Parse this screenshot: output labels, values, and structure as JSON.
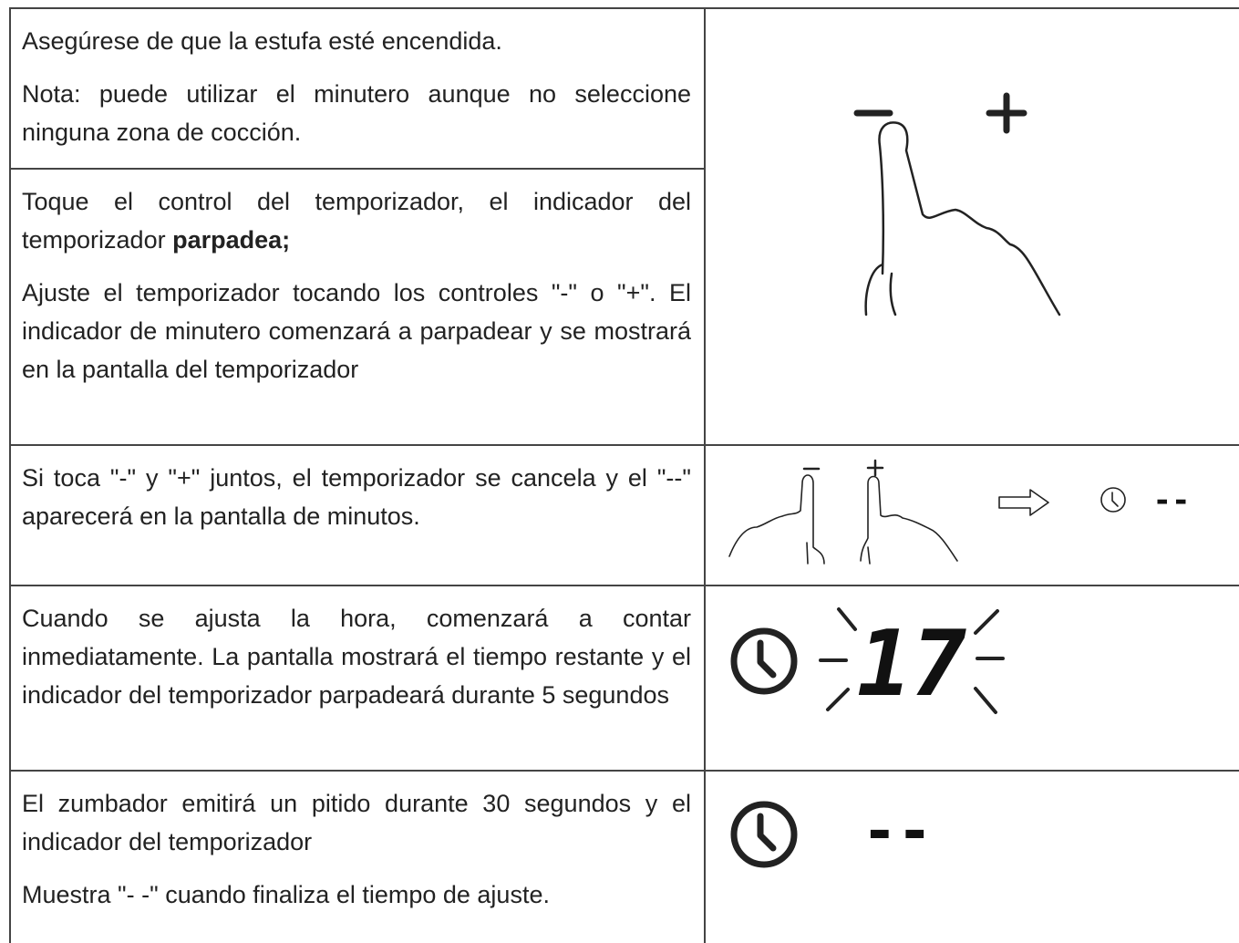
{
  "table": {
    "rows": [
      {
        "paragraphs": [
          [
            {
              "text": "Asegúrese de que la estufa esté encendida."
            }
          ],
          [
            {
              "text": "Nota: puede utilizar el minutero aunque no seleccione ninguna zona de cocción."
            }
          ]
        ]
      },
      {
        "paragraphs": [
          [
            {
              "text": "Toque el control del temporizador, el indicador del temporizador "
            },
            {
              "text": "parpadea;",
              "bold": true
            }
          ],
          [
            {
              "text": "Ajuste el temporizador tocando los controles \"-\" o \"+\". El indicador de minutero comenzará a parpadear y se mostrará en la pantalla del temporizador"
            }
          ]
        ]
      },
      {
        "paragraphs": [
          [
            {
              "text": "Si toca \"-\" y \"+\" juntos, el temporizador se cancela y el \"--\" aparecerá en la pantalla de minutos."
            }
          ]
        ],
        "display": "--"
      },
      {
        "paragraphs": [
          [
            {
              "text": "Cuando se ajusta la hora, comenzará a contar inmediatamente. La pantalla mostrará el tiempo restante y el indicador del temporizador parpadeará durante 5 segundos"
            }
          ]
        ],
        "display": "17"
      },
      {
        "paragraphs": [
          [
            {
              "text": "El zumbador emitirá un pitido durante 30 segundos y el indicador del temporizador"
            }
          ],
          [
            {
              "text": "Muestra \"- -\" cuando finaliza el tiempo de ajuste."
            }
          ]
        ],
        "display": "--"
      }
    ]
  }
}
